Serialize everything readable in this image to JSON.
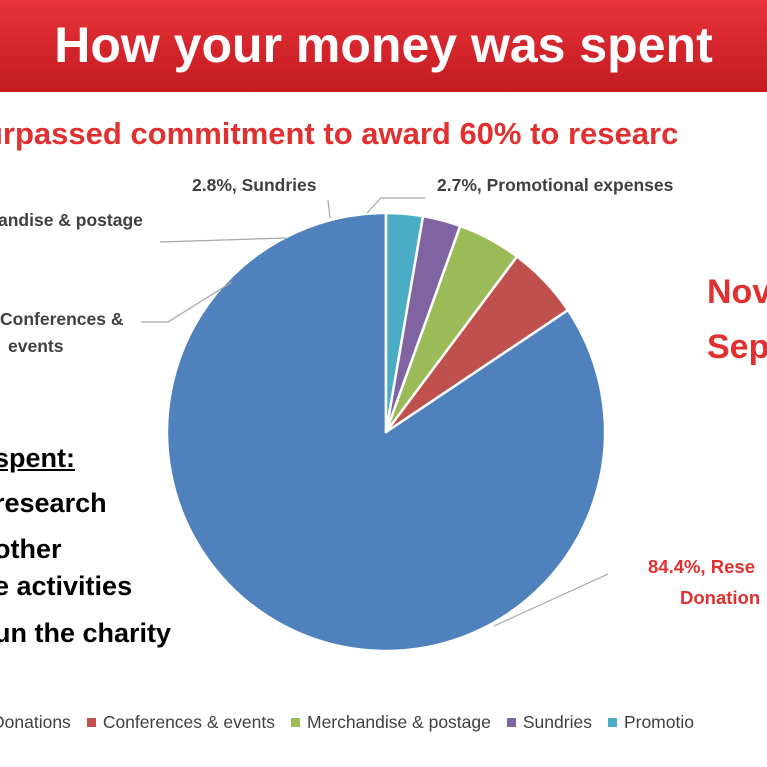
{
  "banner": {
    "title": "How your money was spent"
  },
  "subtitle": "urpassed commitment to award 60% to researc",
  "side_text": [
    "Nov",
    "Sep"
  ],
  "spent_panel": {
    "heading": "spent:",
    "lines": [
      "research",
      "other",
      "e activities",
      "un the charity"
    ]
  },
  "chart_data": {
    "type": "pie",
    "title": "",
    "slices": [
      {
        "name": "Research Donations",
        "value": 84.4,
        "label_pct": "84.4%,",
        "label_lines": [
          "Rese",
          "Donation"
        ],
        "color": "#4f81bd"
      },
      {
        "name": "Conferences & events",
        "value": 5.4,
        "label_pct": "",
        "label_lines": [
          "Conferences &",
          "events"
        ],
        "color": "#c0504d"
      },
      {
        "name": "Merchandise & postage",
        "value": 4.7,
        "label_pct": "",
        "label_lines": [
          "andise & postage"
        ],
        "color": "#9bbb59"
      },
      {
        "name": "Sundries",
        "value": 2.8,
        "label_pct": "2.8%,",
        "label_lines": [
          "Sundries"
        ],
        "color": "#8064a2"
      },
      {
        "name": "Promotional expenses",
        "value": 2.7,
        "label_pct": "2.7%,",
        "label_lines": [
          "Promotional expenses"
        ],
        "color": "#4bacc6"
      }
    ],
    "start_angle_deg": 0,
    "direction": "counterclockwise",
    "legend": {
      "placement": "bottom",
      "entries": [
        "Donations",
        "Conferences & events",
        "Merchandise & postage",
        "Sundries",
        "Promotio"
      ]
    }
  }
}
